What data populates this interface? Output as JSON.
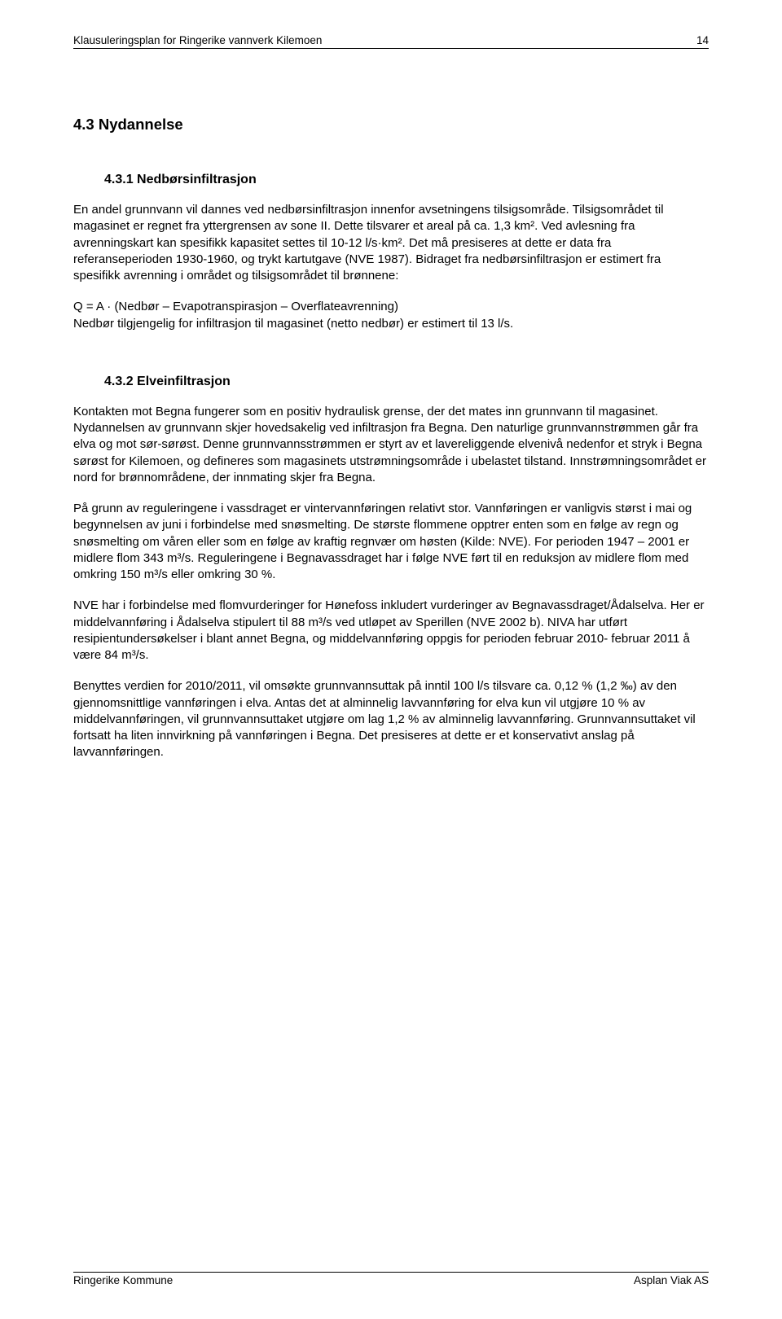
{
  "header": {
    "title": "Klausuleringsplan for Ringerike vannverk Kilemoen",
    "page_number": "14"
  },
  "section": {
    "number": "4.3",
    "title": "Nydannelse"
  },
  "sub1": {
    "number": "4.3.1",
    "title": "Nedbørsinfiltrasjon",
    "p1": "En andel grunnvann vil dannes ved nedbørsinfiltrasjon innenfor avsetningens tilsigsområde. Tilsigsområdet til magasinet er regnet fra yttergrensen av sone II. Dette tilsvarer et areal på ca. 1,3 km². Ved avlesning fra avrenningskart kan spesifikk kapasitet settes til 10-12 l/s·km². Det må presiseres at dette er data fra referanseperioden 1930-1960, og trykt kartutgave (NVE 1987). Bidraget fra nedbørsinfiltrasjon er estimert fra spesifikk avrenning i området og tilsigsområdet til brønnene:",
    "p2": "Q = A · (Nedbør – Evapotranspirasjon – Overflateavrenning)",
    "p3": "Nedbør tilgjengelig for infiltrasjon til magasinet (netto nedbør) er estimert til 13 l/s."
  },
  "sub2": {
    "number": "4.3.2",
    "title": "Elveinfiltrasjon",
    "p1": "Kontakten mot Begna fungerer som en positiv hydraulisk grense, der det mates inn grunnvann til magasinet. Nydannelsen av grunnvann skjer hovedsakelig ved infiltrasjon fra Begna. Den naturlige grunnvannstrømmen går fra elva og mot sør-sørøst. Denne grunnvannsstrømmen er styrt av et lavereliggende elvenivå nedenfor et stryk i Begna sørøst for Kilemoen, og defineres som magasinets utstrømningsområde i ubelastet tilstand. Innstrømningsområdet er nord for brønnområdene, der innmating skjer fra Begna.",
    "p2": "På grunn av reguleringene i vassdraget er vintervannføringen relativt stor. Vannføringen er vanligvis størst i mai og begynnelsen av juni i forbindelse med snøsmelting. De største flommene opptrer enten som en følge av regn og snøsmelting om våren eller som en følge av kraftig regnvær om høsten (Kilde: NVE). For perioden 1947 – 2001 er midlere flom 343 m³/s. Reguleringene i Begnavassdraget har i følge NVE ført til en reduksjon av midlere flom med omkring 150 m³/s eller omkring 30 %.",
    "p3": "NVE har i forbindelse med flomvurderinger for Hønefoss inkludert vurderinger av Begnavassdraget/Ådalselva. Her er middelvannføring i Ådalselva stipulert til 88 m³/s ved utløpet av Sperillen (NVE 2002 b). NIVA har utført resipientundersøkelser i blant annet Begna, og middelvannføring oppgis for perioden februar 2010- februar 2011 å være 84 m³/s.",
    "p4": "Benyttes verdien for 2010/2011, vil omsøkte grunnvannsuttak på inntil 100 l/s tilsvare ca. 0,12 % (1,2 ‰) av den gjennomsnittlige vannføringen i elva. Antas det at alminnelig lavvannføring for elva kun vil utgjøre 10 % av middelvannføringen, vil grunnvannsuttaket utgjøre om lag 1,2 % av alminnelig lavvannføring. Grunnvannsuttaket vil fortsatt ha liten innvirkning på vannføringen i Begna. Det presiseres at dette er et konservativt anslag på lavvannføringen."
  },
  "footer": {
    "left": "Ringerike Kommune",
    "right": "Asplan Viak AS"
  }
}
